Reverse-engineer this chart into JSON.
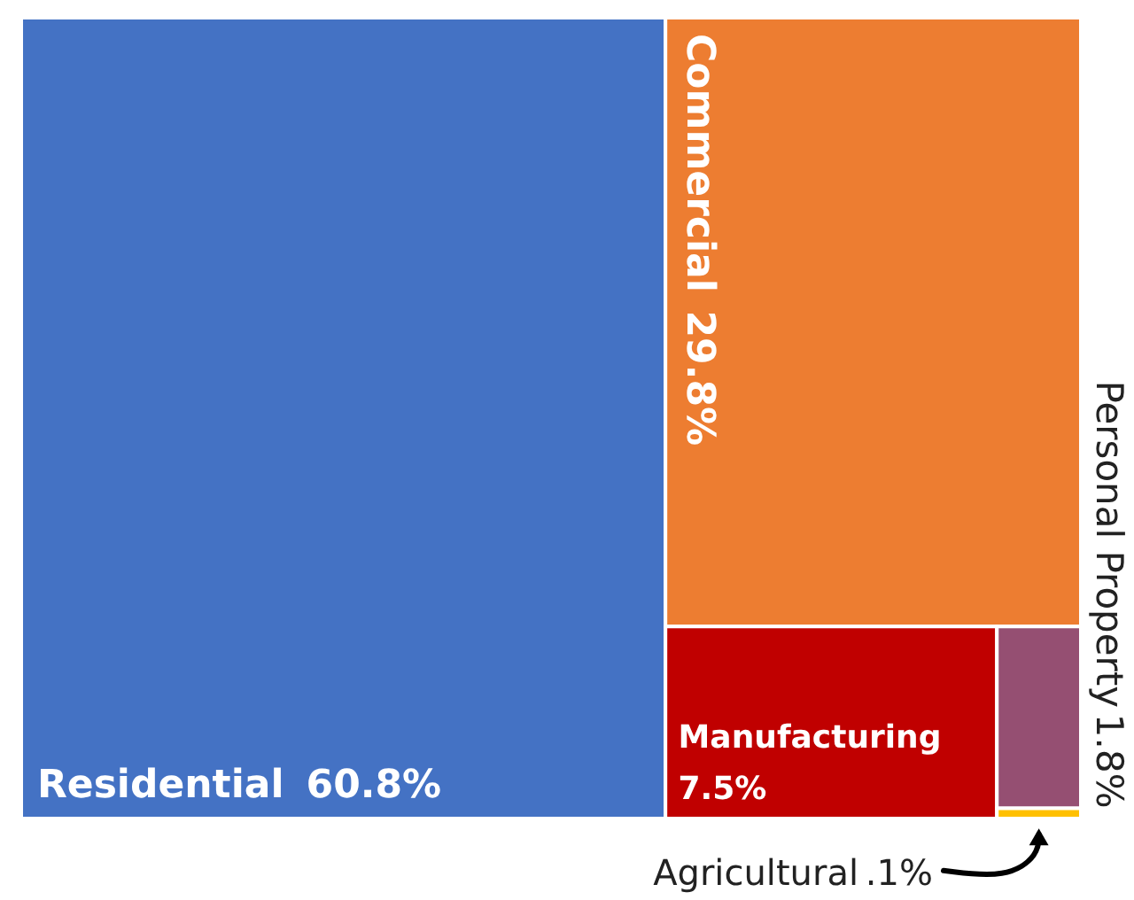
{
  "chart_data": {
    "type": "other",
    "categories": [
      "Residential",
      "Commercial",
      "Manufacturing",
      "Personal Property",
      "Agricultural"
    ],
    "values": [
      60.8,
      29.8,
      7.5,
      1.8,
      0.1
    ],
    "value_labels": [
      "60.8%",
      "29.8%",
      "7.5%",
      "1.8%",
      ".1%"
    ],
    "colors": [
      "#4472c4",
      "#ed7d31",
      "#c00000",
      "#954f72",
      "#ffc000"
    ]
  }
}
